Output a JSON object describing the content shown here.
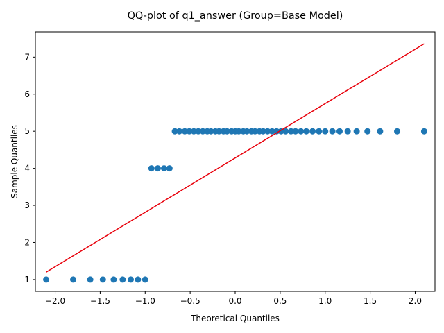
{
  "chart_data": {
    "type": "scatter",
    "title": "QQ-plot of q1_answer (Group=Base Model)",
    "xlabel": "Theoretical Quantiles",
    "ylabel": "Sample Quantiles",
    "xlim": [
      -2.22,
      2.22
    ],
    "ylim": [
      0.68,
      7.68
    ],
    "xticks": [
      -2.0,
      -1.5,
      -1.0,
      -0.5,
      0.0,
      0.5,
      1.0,
      1.5,
      2.0
    ],
    "xtick_labels": [
      "−2.0",
      "−1.5",
      "−1.0",
      "−0.5",
      "0.0",
      "0.5",
      "1.0",
      "1.5",
      "2.0"
    ],
    "yticks": [
      1,
      2,
      3,
      4,
      5,
      6,
      7
    ],
    "ytick_labels": [
      "1",
      "2",
      "3",
      "4",
      "5",
      "6",
      "7"
    ],
    "grid": false,
    "point_color": "#1f77b4",
    "line_color": "#e8000b",
    "points": {
      "x": [
        -2.1,
        -1.8,
        -1.61,
        -1.47,
        -1.35,
        -1.25,
        -1.16,
        -1.08,
        -1.0,
        -0.93,
        -0.86,
        -0.79,
        -0.73,
        -0.67,
        -0.62,
        -0.56,
        -0.51,
        -0.46,
        -0.41,
        -0.36,
        -0.31,
        -0.27,
        -0.22,
        -0.18,
        -0.13,
        -0.09,
        -0.04,
        0.0,
        0.04,
        0.09,
        0.13,
        0.18,
        0.22,
        0.27,
        0.31,
        0.36,
        0.41,
        0.46,
        0.51,
        0.56,
        0.62,
        0.67,
        0.73,
        0.79,
        0.86,
        0.93,
        1.0,
        1.08,
        1.16,
        1.25,
        1.35,
        1.47,
        1.61,
        1.8,
        2.1
      ],
      "y": [
        1,
        1,
        1,
        1,
        1,
        1,
        1,
        1,
        1,
        4,
        4,
        4,
        4,
        5,
        5,
        5,
        5,
        5,
        5,
        5,
        5,
        5,
        5,
        5,
        5,
        5,
        5,
        5,
        5,
        5,
        5,
        5,
        5,
        5,
        5,
        5,
        5,
        5,
        5,
        5,
        5,
        5,
        5,
        5,
        5,
        5,
        5,
        5,
        5,
        5,
        5,
        5,
        5,
        5,
        5
      ]
    },
    "reference_line": {
      "x": [
        -2.1,
        2.1
      ],
      "y": [
        1.2,
        7.36
      ]
    }
  }
}
